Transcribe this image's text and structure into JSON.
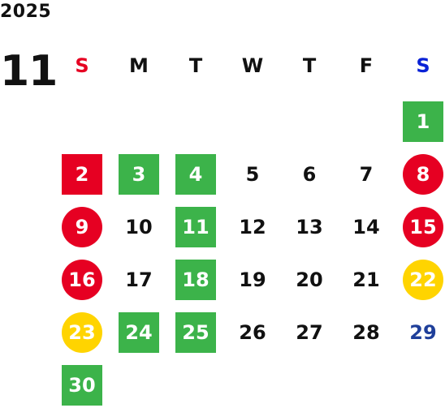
{
  "year": "2025",
  "month": "11",
  "weekdays": [
    {
      "label": "S",
      "color": "#e60022"
    },
    {
      "label": "M",
      "color": "#111111"
    },
    {
      "label": "T",
      "color": "#111111"
    },
    {
      "label": "W",
      "color": "#111111"
    },
    {
      "label": "T",
      "color": "#111111"
    },
    {
      "label": "F",
      "color": "#111111"
    },
    {
      "label": "S",
      "color": "#0a22d6"
    }
  ],
  "weeks": [
    [
      null,
      null,
      null,
      null,
      null,
      null,
      {
        "day": "1",
        "style": "sq-green"
      }
    ],
    [
      {
        "day": "2",
        "style": "sq-red"
      },
      {
        "day": "3",
        "style": "sq-green"
      },
      {
        "day": "4",
        "style": "sq-green"
      },
      {
        "day": "5",
        "style": "plain"
      },
      {
        "day": "6",
        "style": "plain"
      },
      {
        "day": "7",
        "style": "plain"
      },
      {
        "day": "8",
        "style": "c-red"
      }
    ],
    [
      {
        "day": "9",
        "style": "c-red"
      },
      {
        "day": "10",
        "style": "plain"
      },
      {
        "day": "11",
        "style": "sq-green"
      },
      {
        "day": "12",
        "style": "plain"
      },
      {
        "day": "13",
        "style": "plain"
      },
      {
        "day": "14",
        "style": "plain"
      },
      {
        "day": "15",
        "style": "c-red"
      }
    ],
    [
      {
        "day": "16",
        "style": "c-red"
      },
      {
        "day": "17",
        "style": "plain"
      },
      {
        "day": "18",
        "style": "sq-green"
      },
      {
        "day": "19",
        "style": "plain"
      },
      {
        "day": "20",
        "style": "plain"
      },
      {
        "day": "21",
        "style": "plain"
      },
      {
        "day": "22",
        "style": "c-yellow"
      }
    ],
    [
      {
        "day": "23",
        "style": "c-yellow"
      },
      {
        "day": "24",
        "style": "sq-green"
      },
      {
        "day": "25",
        "style": "sq-green"
      },
      {
        "day": "26",
        "style": "plain"
      },
      {
        "day": "27",
        "style": "plain"
      },
      {
        "day": "28",
        "style": "plain"
      },
      {
        "day": "29",
        "style": "t-blue"
      }
    ],
    [
      {
        "day": "30",
        "style": "sq-green"
      },
      null,
      null,
      null,
      null,
      null,
      null
    ]
  ]
}
